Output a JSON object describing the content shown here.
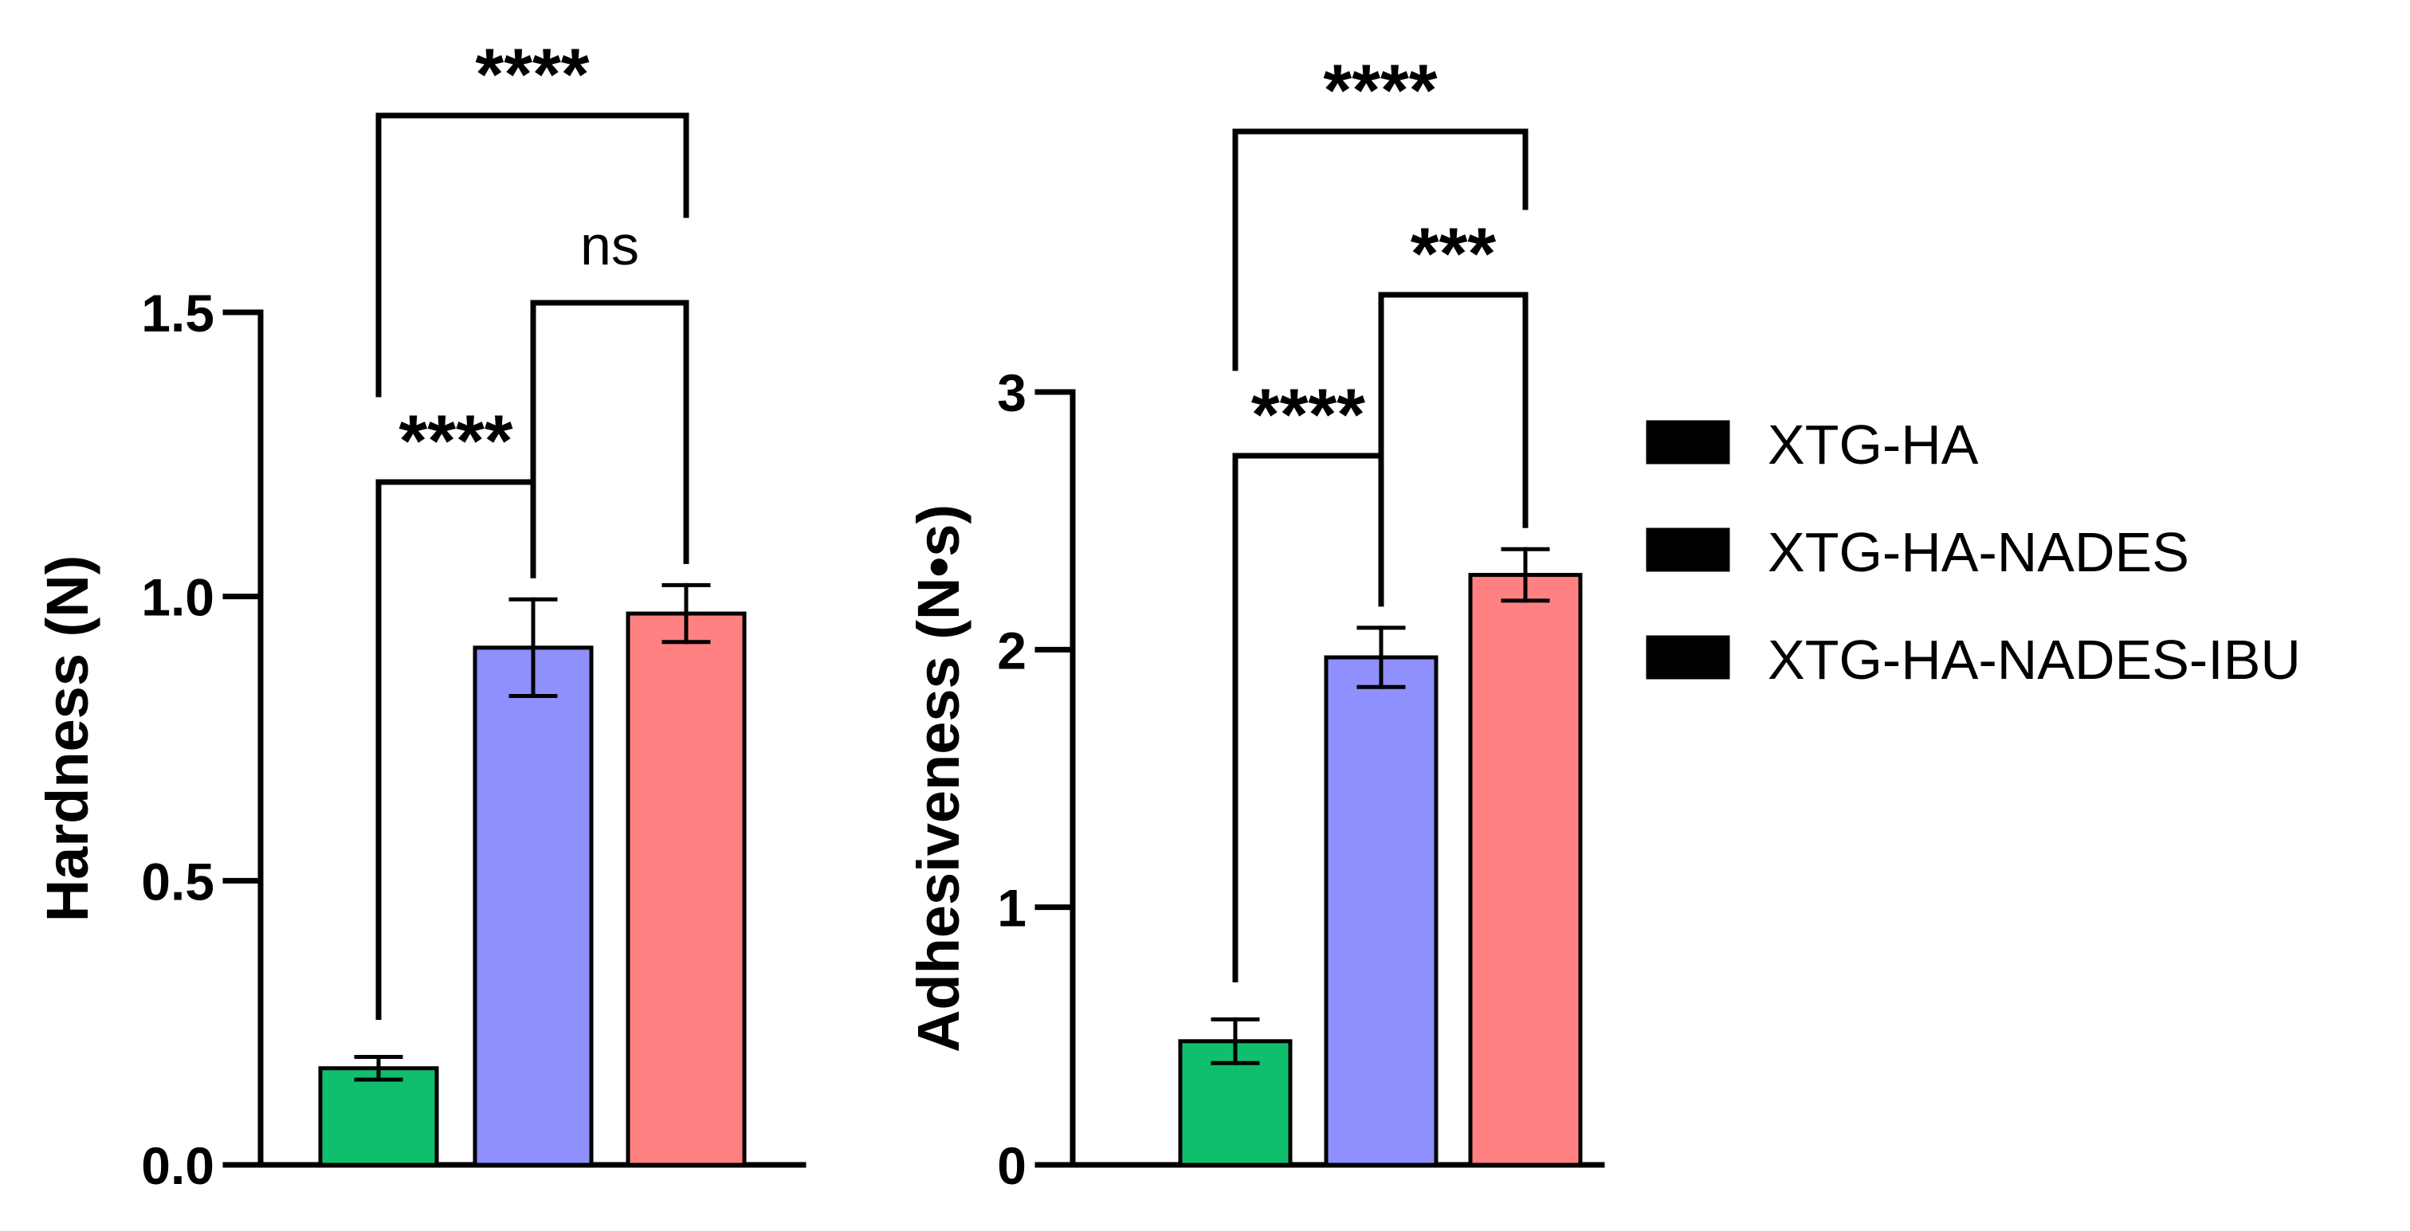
{
  "chart_data": [
    {
      "type": "bar",
      "title": "",
      "xlabel": "",
      "ylabel": "Hardness (N)",
      "ylim": [
        0,
        1.5
      ],
      "yticks": [
        0.0,
        0.5,
        1.0,
        1.5
      ],
      "ytick_labels": [
        "0.0",
        "0.5",
        "1.0",
        "1.5"
      ],
      "categories": [
        "XTG-HA",
        "XTG-HA-NADES",
        "XTG-HA-NADES-IBU"
      ],
      "values": [
        0.17,
        0.91,
        0.97
      ],
      "errors": [
        0.02,
        0.085,
        0.05
      ],
      "significance": [
        {
          "from": 0,
          "to": 2,
          "label": "****",
          "level": 3
        },
        {
          "from": 1,
          "to": 2,
          "label": "ns",
          "level": 2
        },
        {
          "from": 0,
          "to": 1,
          "label": "****",
          "level": 1
        }
      ]
    },
    {
      "type": "bar",
      "title": "",
      "xlabel": "",
      "ylabel": "Adhesiveness (N•s)",
      "ylim": [
        0,
        3
      ],
      "yticks": [
        0,
        1,
        2,
        3
      ],
      "ytick_labels": [
        "0",
        "1",
        "2",
        "3"
      ],
      "categories": [
        "XTG-HA",
        "XTG-HA-NADES",
        "XTG-HA-NADES-IBU"
      ],
      "values": [
        0.48,
        1.97,
        2.29
      ],
      "errors": [
        0.085,
        0.115,
        0.1
      ],
      "significance": [
        {
          "from": 0,
          "to": 2,
          "label": "****",
          "level": 3
        },
        {
          "from": 1,
          "to": 2,
          "label": "***",
          "level": 2
        },
        {
          "from": 0,
          "to": 1,
          "label": "****",
          "level": 1
        }
      ]
    }
  ],
  "legend": {
    "position": "right",
    "items": [
      {
        "label": "XTG-HA",
        "color": "#0fbf6e"
      },
      {
        "label": "XTG-HA-NADES",
        "color": "#8f8ffd"
      },
      {
        "label": "XTG-HA-NADES-IBU",
        "color": "#ff8181"
      }
    ]
  }
}
